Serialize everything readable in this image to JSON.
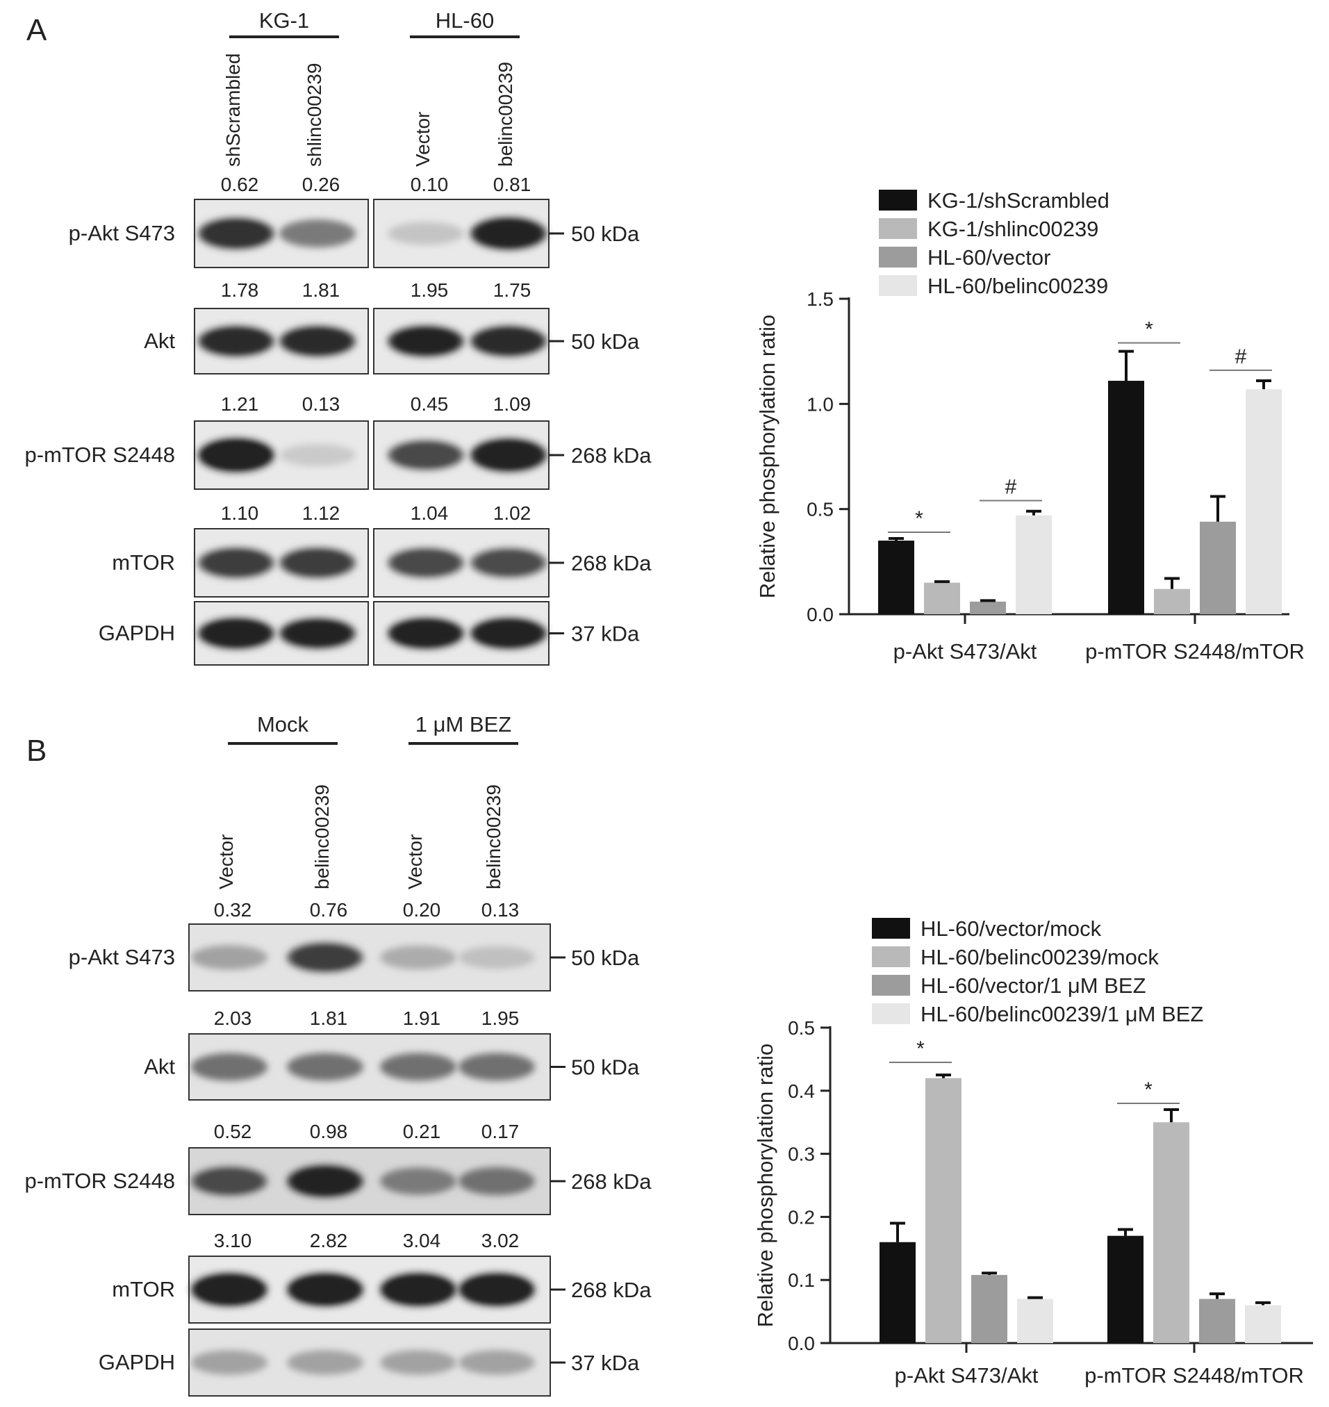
{
  "panels": [
    {
      "letter": "A",
      "groups": [
        {
          "label": "KG-1",
          "lanes": [
            "shScrambled",
            "shlinc00239"
          ]
        },
        {
          "label": "HL-60",
          "lanes": [
            "Vector",
            "belinc00239"
          ]
        }
      ],
      "blots": [
        {
          "label": "p-Akt S473",
          "quant": [
            "0.62",
            "0.26",
            "0.10",
            "0.81"
          ],
          "kda": "50 kDa",
          "intensity": [
            0.82,
            0.55,
            0.18,
            0.9
          ]
        },
        {
          "label": "Akt",
          "quant": [
            "1.78",
            "1.81",
            "1.95",
            "1.75"
          ],
          "kda": "50 kDa",
          "intensity": [
            0.85,
            0.85,
            0.88,
            0.85
          ]
        },
        {
          "label": "p-mTOR  S2448",
          "quant": [
            "1.21",
            "0.13",
            "0.45",
            "1.09"
          ],
          "kda": "268 kDa",
          "intensity": [
            0.98,
            0.15,
            0.7,
            0.95
          ]
        },
        {
          "label": "mTOR",
          "quant": [
            "1.10",
            "1.12",
            "1.04",
            "1.02"
          ],
          "kda": "268 kDa",
          "intensity": [
            0.75,
            0.75,
            0.7,
            0.68
          ]
        },
        {
          "label": "GAPDH",
          "quant": [],
          "kda": "37 kDa",
          "intensity": [
            0.95,
            0.9,
            0.95,
            0.95
          ]
        }
      ]
    },
    {
      "letter": "B",
      "groups": [
        {
          "label": "Mock",
          "lanes": [
            "Vector",
            "belinc00239"
          ]
        },
        {
          "label": "1 μM BEZ",
          "lanes": [
            "Vector",
            "belinc00239"
          ]
        }
      ],
      "blots": [
        {
          "label": "p-Akt S473",
          "quant": [
            "0.32",
            "0.76",
            "0.20",
            "0.13"
          ],
          "kda": "50 kDa",
          "intensity": [
            0.35,
            0.75,
            0.3,
            0.2
          ]
        },
        {
          "label": "Akt",
          "quant": [
            "2.03",
            "1.81",
            "1.91",
            "1.95"
          ],
          "kda": "50 kDa",
          "intensity": [
            0.6,
            0.6,
            0.6,
            0.6
          ]
        },
        {
          "label": "p-mTOR  S2448",
          "quant": [
            "0.52",
            "0.98",
            "0.21",
            "0.17"
          ],
          "kda": "268 kDa",
          "intensity": [
            0.7,
            0.92,
            0.55,
            0.6
          ]
        },
        {
          "label": "mTOR",
          "quant": [
            "3.10",
            "2.82",
            "3.04",
            "3.02"
          ],
          "kda": "268 kDa",
          "intensity": [
            0.98,
            0.98,
            0.98,
            0.98
          ]
        },
        {
          "label": "GAPDH",
          "quant": [],
          "kda": "37 kDa",
          "intensity": [
            0.35,
            0.35,
            0.35,
            0.35
          ]
        }
      ]
    }
  ],
  "chart_data": [
    {
      "type": "bar",
      "panel": "A",
      "categories": [
        "p-Akt S473/Akt",
        "p-mTOR S2448/mTOR"
      ],
      "ylabel": "Relative phosphorylation ratio",
      "ylim": [
        0,
        1.5
      ],
      "yticks": [
        "0.0",
        "0.5",
        "1.0",
        "1.5"
      ],
      "grid": false,
      "legend": "top",
      "series": [
        {
          "name": "KG-1/shScrambled",
          "color": "#111111",
          "values": [
            0.35,
            1.11
          ],
          "err": [
            0.01,
            0.14
          ]
        },
        {
          "name": "KG-1/shlinc00239",
          "color": "#b9b9b9",
          "values": [
            0.15,
            0.12
          ],
          "err": [
            0.005,
            0.05
          ]
        },
        {
          "name": "HL-60/vector",
          "color": "#9c9c9c",
          "values": [
            0.06,
            0.44
          ],
          "err": [
            0.005,
            0.12
          ]
        },
        {
          "name": "HL-60/belinc00239",
          "color": "#e6e6e6",
          "values": [
            0.47,
            1.07
          ],
          "err": [
            0.02,
            0.04
          ]
        }
      ],
      "annotations": [
        {
          "text": "*",
          "category": 0,
          "from": 0,
          "to": 1,
          "y": 0.39
        },
        {
          "text": "#",
          "category": 0,
          "from": 2,
          "to": 3,
          "y": 0.54
        },
        {
          "text": "*",
          "category": 1,
          "from": 0,
          "to": 1,
          "y": 1.29
        },
        {
          "text": "#",
          "category": 1,
          "from": 2,
          "to": 3,
          "y": 1.16
        }
      ]
    },
    {
      "type": "bar",
      "panel": "B",
      "categories": [
        "p-Akt S473/Akt",
        "p-mTOR S2448/mTOR"
      ],
      "ylabel": "Relative phosphorylation ratio",
      "ylim": [
        0,
        0.5
      ],
      "yticks": [
        "0.0",
        "0.1",
        "0.2",
        "0.3",
        "0.4",
        "0.5"
      ],
      "grid": false,
      "legend": "top",
      "series": [
        {
          "name": "HL-60/vector/mock",
          "color": "#111111",
          "values": [
            0.16,
            0.17
          ],
          "err": [
            0.03,
            0.01
          ]
        },
        {
          "name": "HL-60/belinc00239/mock",
          "color": "#b9b9b9",
          "values": [
            0.42,
            0.35
          ],
          "err": [
            0.005,
            0.02
          ]
        },
        {
          "name": "HL-60/vector/1 μM BEZ",
          "color": "#9c9c9c",
          "values": [
            0.108,
            0.07
          ],
          "err": [
            0.003,
            0.008
          ]
        },
        {
          "name": "HL-60/belinc00239/1 μM BEZ",
          "color": "#e6e6e6",
          "values": [
            0.07,
            0.06
          ],
          "err": [
            0.002,
            0.004
          ]
        }
      ],
      "annotations": [
        {
          "text": "*",
          "category": 0,
          "from": 0,
          "to": 1,
          "y": 0.445
        },
        {
          "text": "*",
          "category": 1,
          "from": 0,
          "to": 1,
          "y": 0.38
        }
      ]
    }
  ]
}
